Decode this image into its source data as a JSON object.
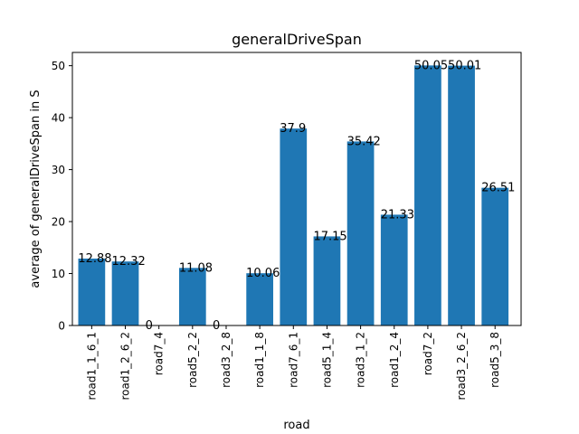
{
  "chart_data": {
    "type": "bar",
    "title": "generalDriveSpan",
    "xlabel": "road",
    "ylabel": "average of generalDriveSpan in S",
    "categories": [
      "road1_1_6_1",
      "road1_2_6_2",
      "road7_4",
      "road5_2_2",
      "road3_2_8",
      "road1_1_8",
      "road7_6_1",
      "road5_1_4",
      "road3_1_2",
      "road1_2_4",
      "road7_2",
      "road3_2_6_2",
      "road5_3_8"
    ],
    "values": [
      12.88,
      12.32,
      0,
      11.08,
      0,
      10.06,
      37.9,
      17.15,
      35.42,
      21.33,
      50.05,
      50.01,
      26.51
    ],
    "value_labels": [
      "12.88",
      "12.32",
      "0",
      "11.08",
      "0",
      "10.06",
      "37.9",
      "17.15",
      "35.42",
      "21.33",
      "50.05",
      "50.01",
      "26.51"
    ],
    "yticks": [
      0,
      10,
      20,
      30,
      40,
      50
    ],
    "ylim": [
      0,
      52.55
    ],
    "grid": false,
    "bar_color": "#1f77b4"
  }
}
